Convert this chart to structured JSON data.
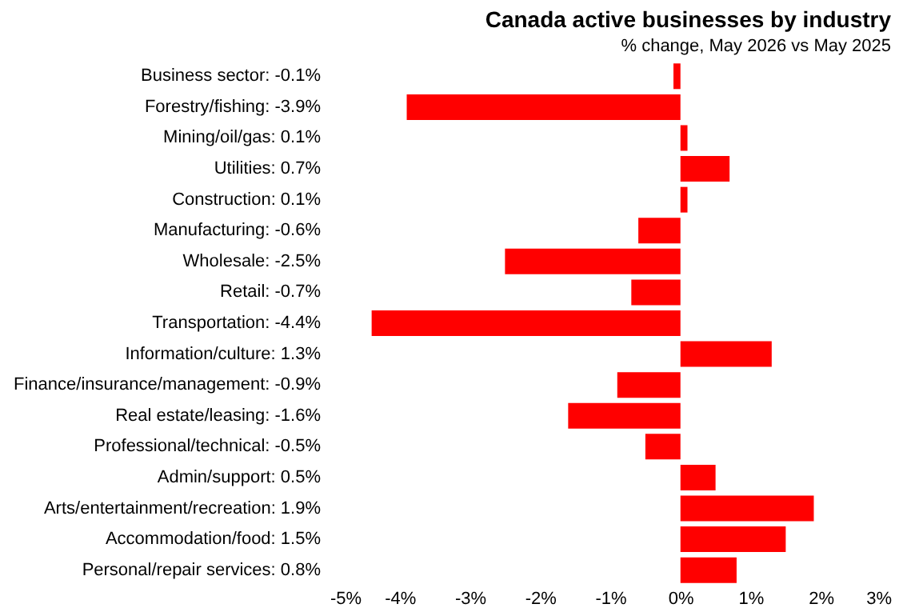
{
  "chart_data": {
    "type": "bar",
    "orientation": "horizontal",
    "title": "Canada active businesses  by industry",
    "subtitle": "% change, May 2026 vs May 2025",
    "categories": [
      "Business sector: -0.1%",
      "Forestry/fishing: -3.9%",
      "Mining/oil/gas: 0.1%",
      "Utilities: 0.7%",
      "Construction: 0.1%",
      "Manufacturing: -0.6%",
      "Wholesale: -2.5%",
      "Retail: -0.7%",
      "Transportation: -4.4%",
      "Information/culture: 1.3%",
      "Finance/insurance/management: -0.9%",
      "Real estate/leasing: -1.6%",
      "Professional/technical: -0.5%",
      "Admin/support: 0.5%",
      "Arts/entertainment/recreation: 1.9%",
      "Accommodation/food: 1.5%",
      "Personal/repair services: 0.8%"
    ],
    "values": [
      -0.1,
      -3.9,
      0.1,
      0.7,
      0.1,
      -0.6,
      -2.5,
      -0.7,
      -4.4,
      1.3,
      -0.9,
      -1.6,
      -0.5,
      0.5,
      1.9,
      1.5,
      0.8
    ],
    "color": "#ff0000",
    "xlim": [
      -5,
      3
    ],
    "xticks": [
      {
        "value": -5,
        "label": "-5%"
      },
      {
        "value": -4,
        "label": "-4%"
      },
      {
        "value": -3,
        "label": "-3%"
      },
      {
        "value": -2,
        "label": "-2%"
      },
      {
        "value": -1,
        "label": "-1%"
      },
      {
        "value": 0,
        "label": "0%"
      },
      {
        "value": 1,
        "label": "1%"
      },
      {
        "value": 2,
        "label": "2%"
      },
      {
        "value": 3,
        "label": "3%"
      }
    ],
    "grid": false
  }
}
